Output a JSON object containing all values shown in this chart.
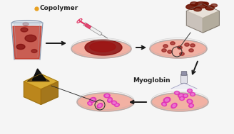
{
  "bg_color": "#f5f5f5",
  "copolymer_label": "Copolymer",
  "myoglobin_label": "Myoglobin",
  "copolymer_dot_color": "#e8a020",
  "arrow_color": "#1a1a1a",
  "dish_fill": "#f2a898",
  "dish_edge": "#b0b0b0",
  "beaker_liquid": "#c03020",
  "beaker_glass": "#c8d4e0",
  "red_blob_dark": "#7a0808",
  "red_blob_mid": "#9b1212",
  "pink_blob_color": "#e030b8",
  "pink_blob_light": "#f080d8",
  "afm_top_white": "#ece8e0",
  "afm_top_dark": "#6b1000",
  "afm_bot_yellow": "#d4a830",
  "afm_bot_dark": "#150500",
  "line_color": "#2a2a2a"
}
